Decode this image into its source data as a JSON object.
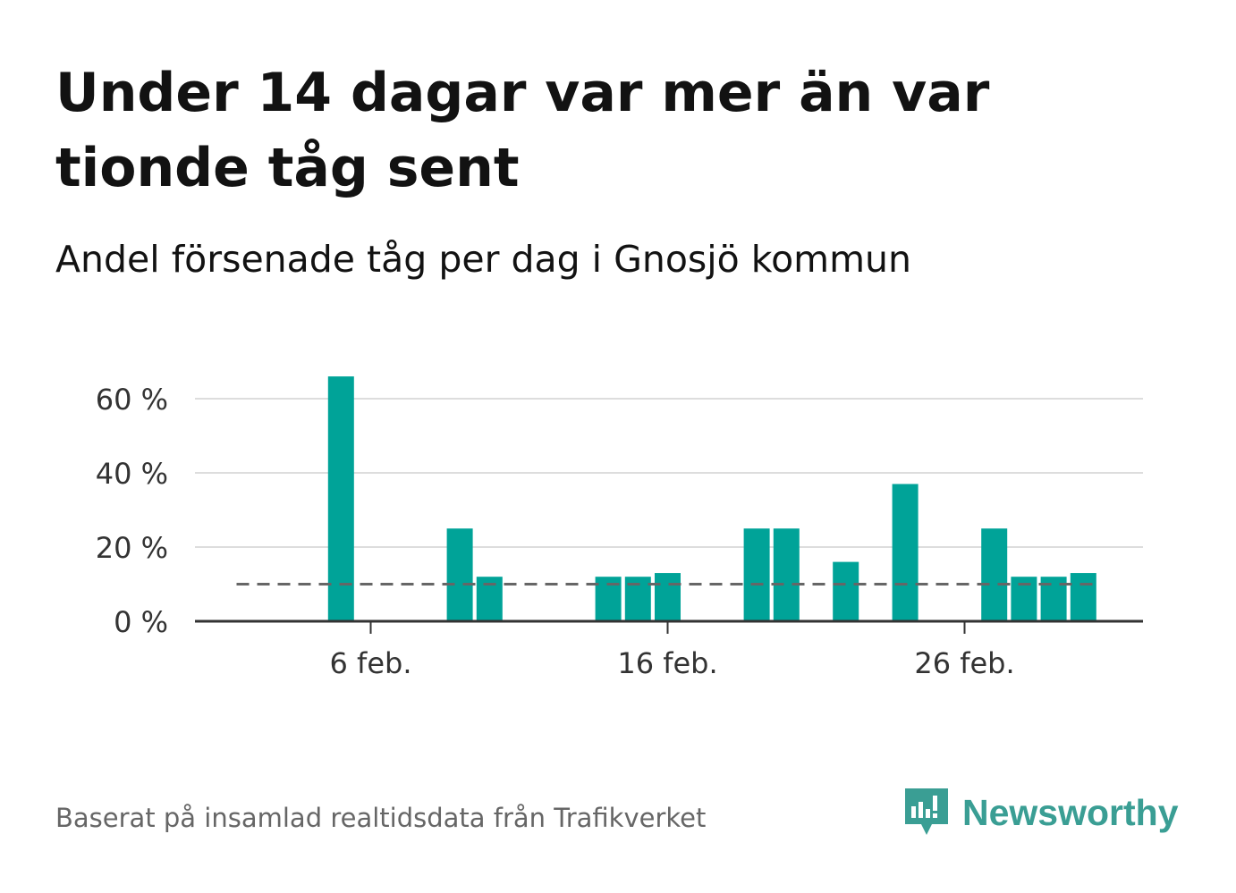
{
  "title": "Under 14 dagar var mer än var tionde tåg sent",
  "subtitle": "Andel försenade tåg per dag i Gnosjö kommun",
  "footer": "Baserat på insamlad realtidsdata från Trafikverket",
  "brand": {
    "name": "Newsworthy",
    "color": "#3a9e94"
  },
  "colors": {
    "bar": "#00a398",
    "grid": "#dddddd",
    "axis": "#333333",
    "reference": "#666666"
  },
  "chart_data": {
    "type": "bar",
    "x": [
      "2/1",
      "2/2",
      "2/3",
      "2/4",
      "2/5",
      "2/6",
      "2/7",
      "2/8",
      "2/9",
      "2/10",
      "2/11",
      "2/12",
      "2/13",
      "2/14",
      "2/15",
      "2/16",
      "2/17",
      "2/18",
      "2/19",
      "2/20",
      "2/21",
      "2/22",
      "2/23",
      "2/24",
      "2/25",
      "2/26",
      "2/27",
      "2/28",
      "2/29",
      "3/1"
    ],
    "values": [
      0,
      0,
      0,
      0,
      66,
      0,
      0,
      0,
      25,
      12,
      0,
      0,
      0,
      12,
      12,
      13,
      0,
      0,
      25,
      25,
      0,
      16,
      0,
      37,
      0,
      0,
      25,
      12,
      12,
      13
    ],
    "reference_line": 10,
    "xticks": [
      {
        "x": "2/6",
        "label": "6 feb."
      },
      {
        "x": "2/16",
        "label": "16 feb."
      },
      {
        "x": "2/26",
        "label": "26 feb."
      }
    ],
    "yticks": [
      {
        "value": 0,
        "label": "0 %"
      },
      {
        "value": 20,
        "label": "20 %"
      },
      {
        "value": 40,
        "label": "40 %"
      },
      {
        "value": 60,
        "label": "60 %"
      }
    ],
    "ylim": [
      0,
      66
    ],
    "grid": true,
    "legend": "none"
  }
}
